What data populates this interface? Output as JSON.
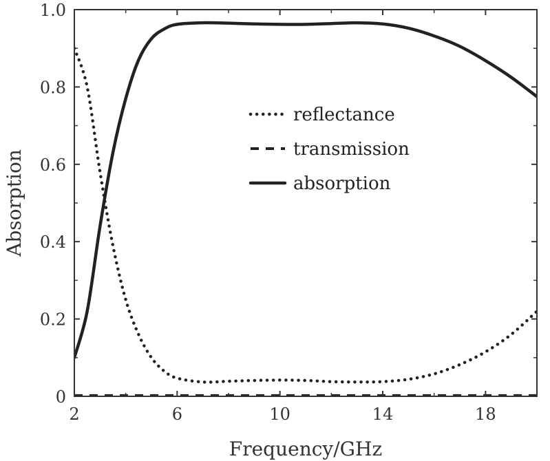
{
  "chart_data": {
    "type": "line",
    "xlabel": "Frequency/GHz",
    "ylabel": "Absorption",
    "xlim": [
      2,
      20
    ],
    "ylim": [
      0,
      1.0
    ],
    "x_ticks": [
      2,
      6,
      10,
      14,
      18
    ],
    "y_ticks": [
      0,
      0.2,
      0.4,
      0.6,
      0.8,
      1.0
    ],
    "y_tick_labels": [
      "0",
      "0.2",
      "0.4",
      "0.6",
      "0.8",
      "1.0"
    ],
    "grid": false,
    "legend_position": "center-right",
    "series": [
      {
        "name": "reflectance",
        "style": "dotted",
        "color": "#222222",
        "points": [
          [
            2.0,
            0.9
          ],
          [
            2.5,
            0.8
          ],
          [
            3.0,
            0.58
          ],
          [
            3.5,
            0.39
          ],
          [
            4.0,
            0.25
          ],
          [
            4.5,
            0.16
          ],
          [
            5.0,
            0.1
          ],
          [
            5.5,
            0.065
          ],
          [
            6.0,
            0.047
          ],
          [
            7.0,
            0.037
          ],
          [
            8.0,
            0.039
          ],
          [
            9.0,
            0.041
          ],
          [
            10.0,
            0.042
          ],
          [
            11.0,
            0.041
          ],
          [
            12.0,
            0.038
          ],
          [
            13.0,
            0.037
          ],
          [
            14.0,
            0.038
          ],
          [
            15.0,
            0.044
          ],
          [
            16.0,
            0.058
          ],
          [
            17.0,
            0.082
          ],
          [
            18.0,
            0.115
          ],
          [
            19.0,
            0.16
          ],
          [
            20.0,
            0.22
          ]
        ]
      },
      {
        "name": "transmission",
        "style": "dashed",
        "color": "#222222",
        "points": [
          [
            2.0,
            0.002
          ],
          [
            6.0,
            0.002
          ],
          [
            10.0,
            0.002
          ],
          [
            14.0,
            0.002
          ],
          [
            18.0,
            0.002
          ],
          [
            20.0,
            0.002
          ]
        ]
      },
      {
        "name": "absorption",
        "style": "solid",
        "color": "#222222",
        "points": [
          [
            2.0,
            0.1
          ],
          [
            2.5,
            0.22
          ],
          [
            3.0,
            0.44
          ],
          [
            3.5,
            0.63
          ],
          [
            4.0,
            0.77
          ],
          [
            4.5,
            0.87
          ],
          [
            5.0,
            0.925
          ],
          [
            5.5,
            0.95
          ],
          [
            6.0,
            0.962
          ],
          [
            7.0,
            0.966
          ],
          [
            8.0,
            0.965
          ],
          [
            9.0,
            0.963
          ],
          [
            10.0,
            0.962
          ],
          [
            11.0,
            0.962
          ],
          [
            12.0,
            0.964
          ],
          [
            13.0,
            0.966
          ],
          [
            14.0,
            0.963
          ],
          [
            15.0,
            0.952
          ],
          [
            16.0,
            0.932
          ],
          [
            17.0,
            0.905
          ],
          [
            18.0,
            0.868
          ],
          [
            19.0,
            0.825
          ],
          [
            20.0,
            0.775
          ]
        ]
      }
    ]
  }
}
